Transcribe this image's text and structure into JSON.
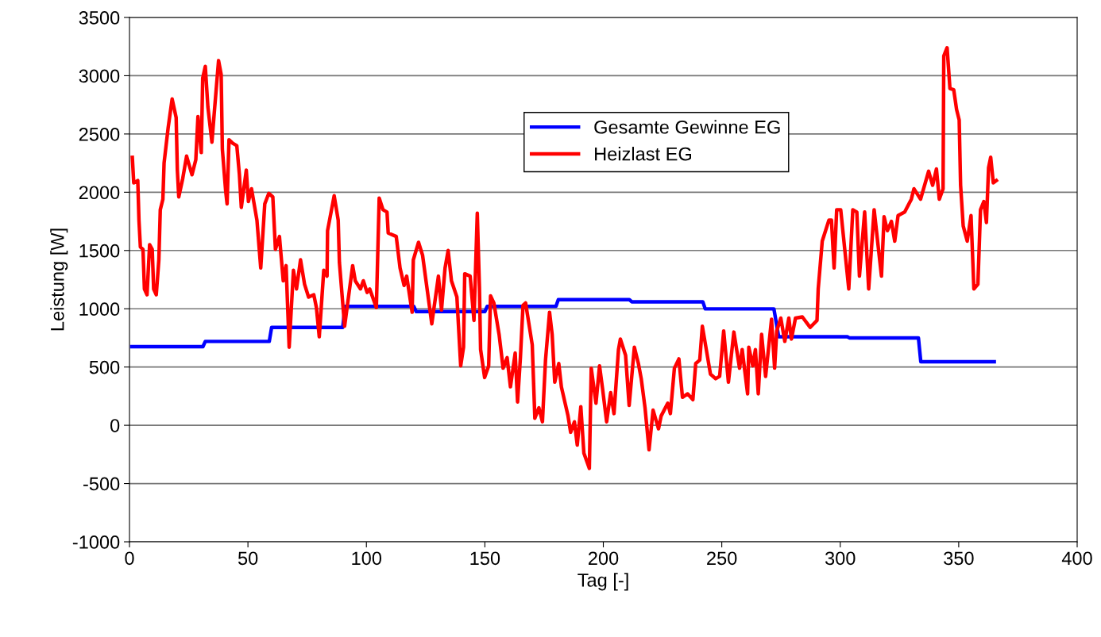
{
  "chart_data": {
    "type": "line",
    "xlabel": "Tag [-]",
    "ylabel": "Leistung [W]",
    "xlim": [
      0,
      400
    ],
    "xticks": [
      0,
      50,
      100,
      150,
      200,
      250,
      300,
      350,
      400
    ],
    "ylim": [
      -1000,
      3500
    ],
    "yticks": [
      -1000,
      -500,
      0,
      500,
      1000,
      1500,
      2000,
      2500,
      3000,
      3500
    ],
    "grid": "y",
    "legend": "top",
    "marker": "none",
    "line_style": "solid",
    "series": [
      {
        "name": "Gesamte Gewinne EG",
        "color": "#0000ff",
        "x": [
          1,
          31,
          32,
          59,
          60,
          90,
          91,
          120,
          121,
          150,
          151,
          180,
          181,
          211,
          212,
          242,
          243,
          272,
          274,
          303,
          304,
          333,
          334,
          365
        ],
        "values": [
          675,
          675,
          720,
          720,
          840,
          840,
          1021,
          1021,
          976,
          976,
          1021,
          1021,
          1078,
          1078,
          1060,
          1060,
          999,
          999,
          760,
          760,
          749,
          749,
          545,
          545
        ]
      },
      {
        "name": "Heizlast EG",
        "color": "#ff0000",
        "x": [
          1.2,
          1.8,
          3.5,
          4,
          4.6,
          5.7,
          6.3,
          7.4,
          8.5,
          9.6,
          10.2,
          11.3,
          12.4,
          13,
          14.1,
          14.6,
          16.3,
          18,
          19.7,
          20.2,
          20.8,
          22.5,
          24.1,
          26.4,
          28,
          28.9,
          30.3,
          30.9,
          32,
          33.1,
          34.8,
          35.9,
          37.6,
          38.7,
          39.2,
          40.6,
          41.2,
          42,
          43.6,
          45.3,
          46.4,
          47.2,
          49.3,
          50.2,
          51.5,
          53.8,
          55.4,
          57.1,
          58.8,
          60.5,
          61.6,
          63.3,
          64.9,
          66.1,
          67.4,
          69.2,
          70.5,
          72.2,
          73.9,
          75.6,
          77.8,
          78.9,
          80.1,
          82,
          83.4,
          83.6,
          86.4,
          88.1,
          88.6,
          90.8,
          94.2,
          95.3,
          97.5,
          98.7,
          100.3,
          101.4,
          104.2,
          105.4,
          107,
          108.7,
          109.2,
          112.6,
          114.2,
          115.9,
          117,
          119.3,
          119.8,
          122,
          123.7,
          127.6,
          130.4,
          131.7,
          133.2,
          134.5,
          135.9,
          138.2,
          139.8,
          141,
          141.5,
          143.8,
          145.4,
          146.8,
          147.7,
          148.2,
          149.9,
          151.6,
          152.4,
          153.8,
          156,
          157.7,
          159.4,
          160.8,
          162.8,
          163.8,
          165,
          166.1,
          167.2,
          170,
          171.1,
          172.8,
          174.3,
          175.6,
          177.3,
          178.4,
          179.5,
          181.2,
          182.3,
          185.1,
          186.2,
          187.8,
          189,
          190.5,
          191.8,
          194.1,
          194.9,
          196.9,
          198.4,
          199.7,
          201.4,
          203.1,
          204.5,
          206.4,
          207.2,
          209.4,
          210.9,
          213.1,
          214.8,
          216,
          217.6,
          219.3,
          221,
          223.3,
          224.4,
          227.2,
          228.3,
          230,
          231.9,
          233.4,
          235.6,
          237.8,
          239,
          240.7,
          241.8,
          245.2,
          247.4,
          249.1,
          250.8,
          252.8,
          255.1,
          257.5,
          258.6,
          260.9,
          261.4,
          263.1,
          264.2,
          265.4,
          266.8,
          268.5,
          271,
          272.3,
          273.2,
          274.9,
          276.6,
          278.3,
          279.4,
          281.1,
          284,
          287.3,
          290.2,
          290.7,
          292.4,
          295.2,
          296.3,
          297.4,
          298.5,
          300.2,
          303.6,
          305.3,
          307,
          308.1,
          310.3,
          312,
          314.3,
          317.4,
          318.5,
          319.9,
          321.6,
          323,
          324.4,
          327.2,
          330,
          331.1,
          333.9,
          337.3,
          339,
          340.6,
          341.8,
          343.4,
          343.7,
          345.1,
          346.3,
          347.9,
          349.1,
          350.2,
          350.8,
          351.9,
          353.6,
          355.2,
          356.4,
          358.1,
          359.2,
          360.6,
          361.7,
          362.6,
          363.5,
          364.6,
          365.9
        ],
        "values": [
          2300,
          2080,
          2100,
          1760,
          1530,
          1510,
          1170,
          1120,
          1550,
          1510,
          1170,
          1120,
          1420,
          1850,
          1940,
          2250,
          2550,
          2800,
          2640,
          2190,
          1960,
          2120,
          2310,
          2150,
          2280,
          2650,
          2340,
          2980,
          3080,
          2730,
          2430,
          2710,
          3130,
          3010,
          2370,
          2010,
          1900,
          2450,
          2420,
          2400,
          2150,
          1870,
          2190,
          1920,
          2030,
          1760,
          1350,
          1900,
          1990,
          1960,
          1510,
          1620,
          1240,
          1370,
          670,
          1330,
          1170,
          1420,
          1210,
          1100,
          1120,
          1010,
          760,
          1330,
          1280,
          1670,
          1970,
          1760,
          1400,
          850,
          1370,
          1240,
          1170,
          1240,
          1140,
          1170,
          1010,
          1950,
          1850,
          1830,
          1650,
          1620,
          1350,
          1200,
          1280,
          970,
          1420,
          1570,
          1460,
          870,
          1280,
          990,
          1350,
          1500,
          1240,
          1100,
          510,
          670,
          1300,
          1280,
          900,
          1820,
          1190,
          650,
          410,
          510,
          1110,
          1050,
          780,
          490,
          580,
          330,
          620,
          200,
          580,
          1030,
          1050,
          690,
          60,
          150,
          30,
          560,
          970,
          780,
          370,
          530,
          330,
          80,
          -60,
          30,
          -170,
          160,
          -240,
          -370,
          490,
          190,
          510,
          310,
          30,
          280,
          100,
          650,
          740,
          600,
          170,
          670,
          530,
          400,
          150,
          -210,
          130,
          -30,
          80,
          190,
          100,
          490,
          570,
          240,
          270,
          220,
          530,
          560,
          850,
          440,
          400,
          420,
          810,
          370,
          800,
          490,
          650,
          270,
          670,
          510,
          650,
          270,
          780,
          420,
          910,
          490,
          810,
          920,
          720,
          920,
          740,
          920,
          930,
          840,
          900,
          1170,
          1580,
          1760,
          1760,
          1350,
          1850,
          1850,
          1170,
          1850,
          1830,
          1280,
          1830,
          1170,
          1850,
          1280,
          1790,
          1670,
          1750,
          1580,
          1800,
          1830,
          1940,
          2030,
          1940,
          2180,
          2060,
          2200,
          1940,
          2030,
          3170,
          3240,
          2890,
          2880,
          2710,
          2620,
          2060,
          1710,
          1580,
          1800,
          1170,
          1210,
          1850,
          1920,
          1740,
          2210,
          2300,
          2080,
          2100
        ]
      }
    ]
  }
}
